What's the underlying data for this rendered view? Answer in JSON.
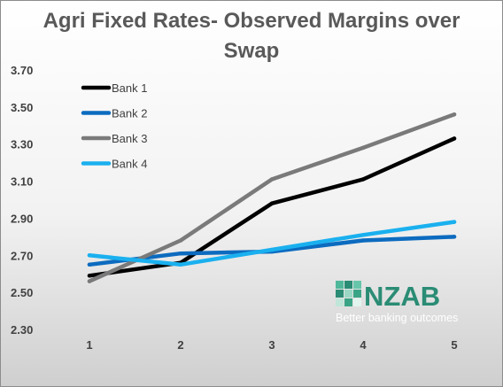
{
  "chart_data": {
    "type": "line",
    "title": "Agri Fixed Rates- Observed Margins over Swap",
    "xlabel": "",
    "ylabel": "",
    "categories": [
      "1",
      "2",
      "3",
      "4",
      "5"
    ],
    "y_ticks": [
      "2.30",
      "2.50",
      "2.70",
      "2.90",
      "3.10",
      "3.30",
      "3.50",
      "3.70"
    ],
    "ylim": [
      2.3,
      3.7
    ],
    "grid": false,
    "legend_position": "top-left",
    "series": [
      {
        "name": "Bank 1",
        "values": [
          2.59,
          2.66,
          2.98,
          3.11,
          3.33
        ],
        "color": "#000000"
      },
      {
        "name": "Bank 2",
        "values": [
          2.65,
          2.71,
          2.72,
          2.78,
          2.8
        ],
        "color": "#0c6bbf"
      },
      {
        "name": "Bank 3",
        "values": [
          2.56,
          2.78,
          3.11,
          3.28,
          3.46
        ],
        "color": "#7a7a7a"
      },
      {
        "name": "Bank 4",
        "values": [
          2.7,
          2.65,
          2.73,
          2.81,
          2.88
        ],
        "color": "#1ab0ef"
      }
    ]
  },
  "logo": {
    "brand": "NZAB",
    "tagline": "Better banking outcomes",
    "color": "#2a8c74"
  }
}
